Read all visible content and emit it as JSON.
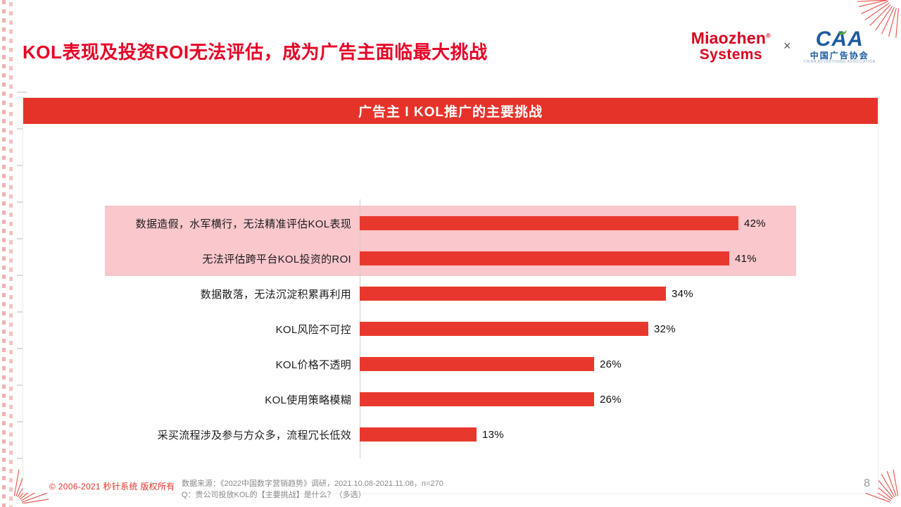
{
  "header": {
    "title": "KOL表现及投资ROI无法评估，成为广告主面临最大挑战",
    "logos": {
      "miaozhen_line1": "Miaozhen",
      "miaozhen_reg": "®",
      "miaozhen_line2": "Systems",
      "separator": "×",
      "caa_acronym": "CAA",
      "caa_name": "中国广告协会",
      "caa_subtitle": "CHINA ADVERTISING ASSOCIATION"
    }
  },
  "chart_data": {
    "type": "bar",
    "orientation": "horizontal",
    "title": "广告主 I KOL推广的主要挑战",
    "categories": [
      "数据造假，水军横行，无法精准评估KOL表现",
      "无法评估跨平台KOL投资的ROI",
      "数据散落，无法沉淀积累再利用",
      "KOL风险不可控",
      "KOL价格不透明",
      "KOL使用策略模糊",
      "采买流程涉及参与方众多，流程冗长低效"
    ],
    "values": [
      42,
      41,
      34,
      32,
      26,
      26,
      13
    ],
    "value_suffix": "%",
    "xlim": [
      0,
      48
    ],
    "highlighted_rows": [
      0,
      1
    ],
    "grid": false,
    "legend": "none"
  },
  "footer": {
    "copyright": "© 2006-2021 秒针系统 版权所有",
    "source_line1": "数据来源：《2022中国数字营销趋势》调研，2021.10.08-2021.11.08，n=270",
    "source_line2": "Q：贵公司投放KOL的【主要挑战】是什么？（多选）",
    "page_number": "8"
  },
  "colors": {
    "accent_red": "#E6332A",
    "bar_red": "#E8382D",
    "highlight_band": "#F9C7CC",
    "title_red": "#E60026",
    "miaozhen_red": "#D8001E",
    "caa_blue": "#1C5AA0",
    "source_gray": "#8A8A8A"
  }
}
